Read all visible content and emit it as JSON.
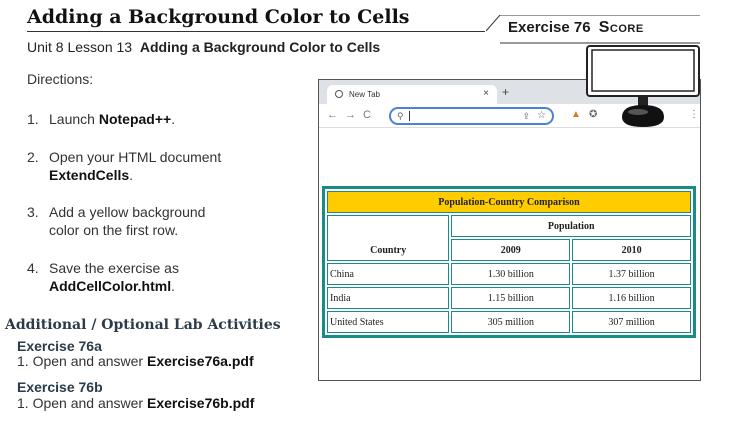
{
  "header": {
    "title": "Adding a Background Color to Cells",
    "exercise_label": "Exercise 76",
    "score_label": "Score"
  },
  "lesson": {
    "prefix": "Unit 8 Lesson 13",
    "name": "Adding a Background Color to Cells"
  },
  "directions_label": "Directions:",
  "steps": [
    {
      "num": "1.",
      "text": "Launch ",
      "bold": "Notepad++",
      "after": "."
    },
    {
      "num": "2.",
      "text": "Open your HTML document",
      "bold": "ExtendCells",
      "after": "."
    },
    {
      "num": "3.",
      "text": "Add a yellow background",
      "cont": "color on the first row."
    },
    {
      "num": "4.",
      "text": "Save the exercise as",
      "bold": "AddCellColor.html",
      "after": "."
    }
  ],
  "additional": {
    "heading": "Additional / Optional Lab Activities",
    "exercises": [
      {
        "title": "Exercise 76a",
        "num": "1.",
        "text": "Open and answer ",
        "bold": "Exercise76a.pdf"
      },
      {
        "title": "Exercise 76b",
        "num": "1.",
        "text": "Open and answer ",
        "bold": "Exercise76b.pdf"
      }
    ]
  },
  "browser": {
    "tab_label": "New Tab",
    "tab_close": "×",
    "new_tab": "+",
    "back": "←",
    "forward": "→",
    "reload": "C",
    "share": "⇪",
    "star": "☆",
    "table": {
      "caption": "Population-Country Comparison",
      "country_header": "Country",
      "population_header": "Population",
      "years": [
        "2009",
        "2010"
      ],
      "rows": [
        {
          "country": "China",
          "y2009": "1.30 billion",
          "y2010": "1.37 billion"
        },
        {
          "country": "India",
          "y2009": "1.15 billion",
          "y2010": "1.16 billion"
        },
        {
          "country": "United States",
          "y2009": "305 million",
          "y2010": "307 million"
        }
      ]
    }
  },
  "colors": {
    "caption_bg": "#ffcc00",
    "table_border": "#1a8a8a",
    "address_focus": "#4b82d4"
  }
}
